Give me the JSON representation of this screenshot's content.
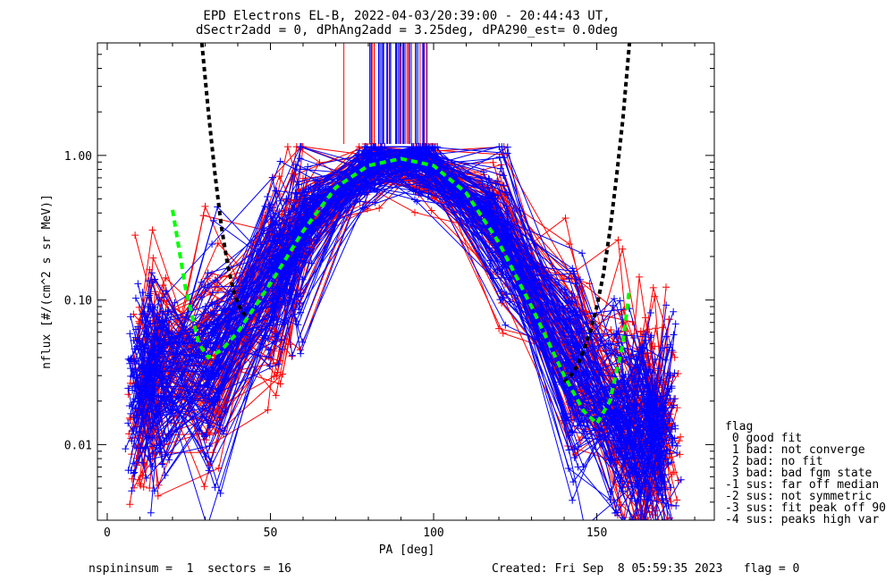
{
  "title_line1": "EPD Electrons EL-B, 2022-04-03/20:39:00 - 20:44:43 UT,",
  "title_line2": "dSectr2add = 0, dPhAng2add = 3.25deg, dPA290_est=   0.0deg",
  "footer_left": "nspininsum =  1  sectors = 16",
  "footer_right": "Created: Fri Sep  8 05:59:35 2023   flag = 0",
  "legend": {
    "title": "flag",
    "lines": [
      " 0 good fit",
      " 1 bad: not converge",
      " 2 bad: no fit",
      " 3 bad: bad fgm state",
      "-1 sus: far off median",
      "-2 sus: not symmetric",
      "-3 sus: fit peak off 90",
      "-4 sus: peaks high var"
    ]
  },
  "chart_data": {
    "type": "line",
    "xlabel": "PA [deg]",
    "ylabel": "nflux [#/(cm^2 s sr MeV)]",
    "x_ticks": [
      "0",
      "50",
      "100",
      "150"
    ],
    "y_ticks": [
      "0.01",
      "0.10",
      "1.00"
    ],
    "xlim": [
      -3,
      186
    ],
    "ylim": [
      0.003,
      6.0
    ],
    "y_scale": "log",
    "colors": {
      "red_spectra": "#ff0000",
      "blue_spectra": "#0000ff",
      "fit": "#00ff00",
      "model": "#000000"
    },
    "pa_bins": [
      10,
      16,
      32,
      52,
      61,
      81,
      97,
      119,
      143,
      158,
      165,
      171
    ],
    "spectra_red_sample": [
      [
        0.03,
        0.045,
        0.07,
        0.2,
        0.4,
        0.85,
        0.85,
        0.25,
        0.03,
        0.015,
        0.012,
        0.008
      ],
      [
        0.02,
        0.03,
        0.05,
        0.12,
        0.3,
        0.9,
        0.9,
        0.3,
        0.05,
        0.02,
        0.015,
        0.01
      ],
      [
        0.05,
        0.06,
        0.09,
        0.3,
        0.5,
        0.95,
        0.8,
        0.2,
        0.02,
        0.012,
        0.009,
        0.006
      ]
    ],
    "spectra_blue_sample": [
      [
        0.04,
        0.05,
        0.08,
        0.25,
        0.45,
        0.9,
        0.95,
        0.35,
        0.04,
        0.02,
        0.015,
        0.012
      ],
      [
        0.015,
        0.025,
        0.04,
        0.1,
        0.25,
        0.8,
        0.85,
        0.25,
        0.03,
        0.014,
        0.01,
        0.008
      ],
      [
        0.09,
        0.1,
        0.15,
        0.35,
        0.6,
        1.0,
        1.0,
        0.4,
        0.06,
        0.03,
        0.02,
        0.015
      ]
    ],
    "green_fit": {
      "x": [
        20,
        24,
        28,
        31,
        35,
        40,
        50,
        60,
        70,
        80,
        90,
        100,
        110,
        120,
        130,
        140,
        146,
        150,
        154,
        158,
        160
      ],
      "y": [
        0.42,
        0.12,
        0.05,
        0.04,
        0.045,
        0.06,
        0.13,
        0.3,
        0.6,
        0.85,
        0.95,
        0.85,
        0.55,
        0.25,
        0.09,
        0.03,
        0.017,
        0.014,
        0.02,
        0.05,
        0.12
      ]
    },
    "black_model": {
      "x": [
        29,
        31,
        33,
        35,
        37,
        39,
        41,
        43,
        140,
        142,
        144,
        146,
        148,
        150,
        152,
        154,
        156,
        158,
        160
      ],
      "y": [
        6.0,
        2.0,
        0.75,
        0.32,
        0.17,
        0.11,
        0.085,
        0.075,
        0.027,
        0.03,
        0.035,
        0.045,
        0.06,
        0.09,
        0.15,
        0.3,
        0.7,
        1.8,
        6.0
      ]
    }
  }
}
